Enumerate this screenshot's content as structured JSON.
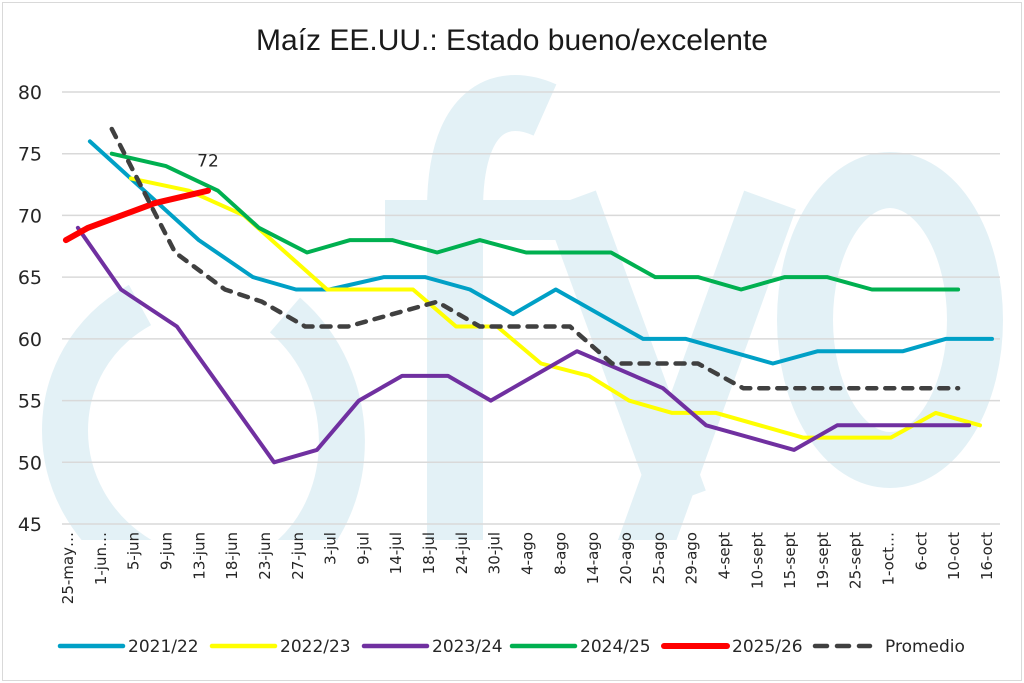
{
  "chart_data": {
    "type": "line",
    "title": "Maíz EE.UU.: Estado bueno/excelente",
    "xlabel": "",
    "ylabel": "",
    "ylim": [
      45,
      80
    ],
    "yticks": [
      80,
      75,
      70,
      65,
      60,
      55,
      50,
      45
    ],
    "grid": true,
    "legend_position": "bottom",
    "watermark": "()fyo",
    "categories": [
      "25-may…",
      "1-jun…",
      "5-jun",
      "9-jun",
      "13-jun",
      "18-jun",
      "23-jun",
      "27-jun",
      "3-jul",
      "9-jul",
      "14-jul",
      "18-jul",
      "24-jul",
      "30-jul",
      "4-ago",
      "8-ago",
      "14-ago",
      "20-ago",
      "25-ago",
      "29-ago",
      "4-sept",
      "10-sept",
      "15-sept",
      "19-sept",
      "25-sept",
      "1-oct…",
      "6-oct",
      "10-oct",
      "16-oct"
    ],
    "series": [
      {
        "name": "2021/22",
        "color": "#00a0c6",
        "dashed": false,
        "points": [
          [
            0.62,
            76
          ],
          [
            3.7,
            68
          ],
          [
            5.23,
            65
          ],
          [
            6.45,
            64
          ],
          [
            7.4,
            64
          ],
          [
            8.94,
            65
          ],
          [
            10.1,
            65
          ],
          [
            11.37,
            64
          ],
          [
            12.59,
            62
          ],
          [
            13.8,
            64
          ],
          [
            16.27,
            60
          ],
          [
            17.48,
            60
          ],
          [
            19.94,
            58
          ],
          [
            21.21,
            59
          ],
          [
            23.62,
            59
          ],
          [
            24.83,
            60
          ],
          [
            26.14,
            60
          ]
        ]
      },
      {
        "name": "2022/23",
        "color": "#ffff00",
        "dashed": false,
        "points": [
          [
            1.78,
            73
          ],
          [
            3.42,
            72
          ],
          [
            4.98,
            70
          ],
          [
            7.33,
            64
          ],
          [
            9.76,
            64
          ],
          [
            10.98,
            61
          ],
          [
            12.14,
            61
          ],
          [
            13.38,
            58
          ],
          [
            14.74,
            57
          ],
          [
            15.87,
            55
          ],
          [
            17.09,
            54
          ],
          [
            18.33,
            54
          ],
          [
            20.79,
            52
          ],
          [
            23.28,
            52
          ],
          [
            24.55,
            54
          ],
          [
            25.8,
            53
          ]
        ]
      },
      {
        "name": "2023/24",
        "color": "#7030a0",
        "dashed": false,
        "points": [
          [
            0.28,
            69
          ],
          [
            1.5,
            64
          ],
          [
            3.08,
            61
          ],
          [
            5.83,
            50
          ],
          [
            7.04,
            51
          ],
          [
            8.23,
            55
          ],
          [
            9.45,
            57
          ],
          [
            10.75,
            57
          ],
          [
            11.96,
            55
          ],
          [
            14.4,
            59
          ],
          [
            16.83,
            56
          ],
          [
            18.05,
            53
          ],
          [
            20.54,
            51
          ],
          [
            21.76,
            53
          ],
          [
            25.49,
            53
          ]
        ]
      },
      {
        "name": "2024/25",
        "color": "#00b050",
        "dashed": false,
        "points": [
          [
            1.24,
            75
          ],
          [
            2.77,
            74
          ],
          [
            4.24,
            72
          ],
          [
            5.4,
            69
          ],
          [
            6.76,
            67
          ],
          [
            7.98,
            68
          ],
          [
            9.17,
            68
          ],
          [
            10.44,
            67
          ],
          [
            11.65,
            68
          ],
          [
            12.96,
            67
          ],
          [
            15.36,
            67
          ],
          [
            16.61,
            65
          ],
          [
            17.82,
            65
          ],
          [
            19.04,
            64
          ],
          [
            20.28,
            65
          ],
          [
            21.47,
            65
          ],
          [
            22.74,
            64
          ],
          [
            25.18,
            64
          ]
        ]
      },
      {
        "name": "2025/26",
        "color": "#ff0000",
        "dashed": false,
        "points": [
          [
            -0.06,
            68
          ],
          [
            0.57,
            69
          ],
          [
            2.46,
            71
          ],
          [
            3.96,
            72
          ]
        ],
        "last_label": "72"
      },
      {
        "name": "Promedio",
        "color": "#404040",
        "dashed": true,
        "points": [
          [
            1.24,
            77
          ],
          [
            3.03,
            67
          ],
          [
            4.44,
            64
          ],
          [
            5.49,
            63
          ],
          [
            6.71,
            61
          ],
          [
            7.92,
            61
          ],
          [
            10.44,
            63
          ],
          [
            11.65,
            61
          ],
          [
            14.2,
            61
          ],
          [
            15.39,
            58
          ],
          [
            17.82,
            58
          ],
          [
            19.1,
            56
          ],
          [
            25.18,
            56
          ]
        ]
      }
    ]
  }
}
